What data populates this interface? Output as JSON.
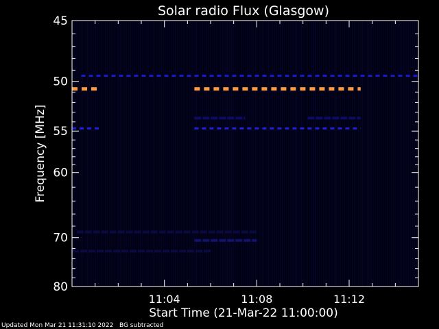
{
  "footer": {
    "updated": "Updated Mon Mar 21 11:31:10 2022",
    "note": "BG subtracted"
  },
  "chart_data": {
    "type": "heatmap",
    "title": "Solar radio Flux (Glasgow)",
    "xlabel": "Start Time (21-Mar-22 11:00:00)",
    "ylabel": "Frequency [MHz]",
    "x_unit": "minutes after 11:00",
    "xlim": [
      0,
      15
    ],
    "ylim": [
      45,
      80
    ],
    "y_scale": "reciprocal",
    "x_ticks": [
      {
        "value": 4,
        "label": "11:04"
      },
      {
        "value": 8,
        "label": "11:08"
      },
      {
        "value": 12,
        "label": "11:12"
      }
    ],
    "y_ticks": [
      {
        "value": 45,
        "label": "45"
      },
      {
        "value": 50,
        "label": "50"
      },
      {
        "value": 55,
        "label": "55"
      },
      {
        "value": 60,
        "label": "60"
      },
      {
        "value": 70,
        "label": "70"
      },
      {
        "value": 80,
        "label": "80"
      }
    ],
    "y_minor_ticks": [
      46,
      47,
      48,
      49,
      51,
      52,
      53,
      54,
      56,
      57,
      58,
      59,
      62,
      64,
      66,
      68,
      72,
      74,
      76,
      78
    ],
    "background_color": "#000014",
    "bands": [
      {
        "freq": 49.5,
        "x_start": 0.4,
        "x_end": 15.0,
        "color": "#1a1acc",
        "intensity": "low"
      },
      {
        "freq": 50.7,
        "x_start": 0.0,
        "x_end": 1.2,
        "color": "#ff9a40",
        "intensity": "high"
      },
      {
        "freq": 50.7,
        "x_start": 5.3,
        "x_end": 12.5,
        "color": "#ff9a40",
        "intensity": "high"
      },
      {
        "freq": 54.7,
        "x_start": 0.0,
        "x_end": 1.2,
        "color": "#2020dd",
        "intensity": "low"
      },
      {
        "freq": 54.7,
        "x_start": 5.3,
        "x_end": 12.5,
        "color": "#2020dd",
        "intensity": "low"
      },
      {
        "freq": 53.6,
        "x_start": 5.3,
        "x_end": 7.5,
        "color": "#0c0c66",
        "intensity": "faint"
      },
      {
        "freq": 53.6,
        "x_start": 10.2,
        "x_end": 12.5,
        "color": "#0c0c66",
        "intensity": "faint"
      },
      {
        "freq": 70.5,
        "x_start": 5.3,
        "x_end": 8.0,
        "color": "#12126e",
        "intensity": "faint"
      },
      {
        "freq": 69.0,
        "x_start": 0.2,
        "x_end": 8.0,
        "color": "#0a0a40",
        "intensity": "faint"
      },
      {
        "freq": 72.5,
        "x_start": 0.0,
        "x_end": 6.0,
        "color": "#0a0a40",
        "intensity": "faint"
      }
    ]
  }
}
